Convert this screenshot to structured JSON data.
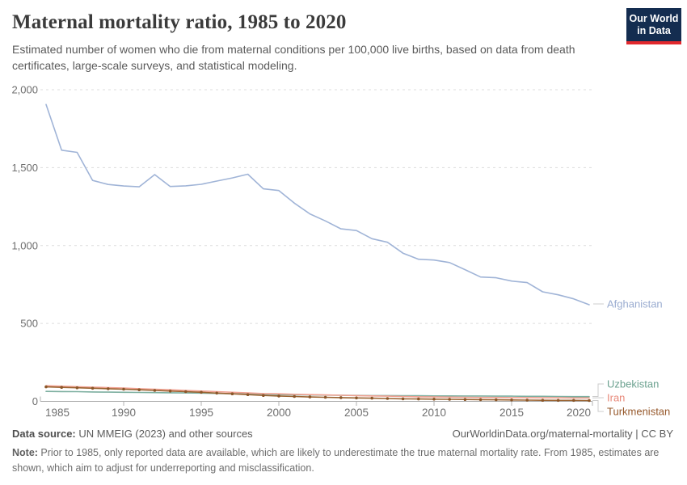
{
  "logo": {
    "line1": "Our World",
    "line2": "in Data",
    "bg_color": "#142d50",
    "bar_color": "#e1282d"
  },
  "header": {
    "title": "Maternal mortality ratio, 1985 to 2020",
    "subtitle": "Estimated number of women who die from maternal conditions per 100,000 live births, based on data from death certificates, large-scale surveys, and statistical modeling."
  },
  "chart_data": {
    "type": "line",
    "title": "Maternal mortality ratio, 1985 to 2020",
    "xlabel": "",
    "ylabel": "",
    "ylim": [
      0,
      2000
    ],
    "yticks": [
      0,
      500,
      1000,
      1500,
      2000
    ],
    "ytick_labels": [
      "0",
      "500",
      "1,000",
      "1,500",
      "2,000"
    ],
    "xticks": [
      1985,
      1990,
      1995,
      2000,
      2005,
      2010,
      2015,
      2020
    ],
    "grid": "horizontal-dashed",
    "legend": "end-of-line-labels",
    "years": [
      1985,
      1986,
      1987,
      1988,
      1989,
      1990,
      1991,
      1992,
      1993,
      1994,
      1995,
      1996,
      1997,
      1998,
      1999,
      2000,
      2001,
      2002,
      2003,
      2004,
      2005,
      2006,
      2007,
      2008,
      2009,
      2010,
      2011,
      2012,
      2013,
      2014,
      2015,
      2016,
      2017,
      2018,
      2019,
      2020
    ],
    "series": [
      {
        "name": "Afghanistan",
        "color": "#a0b4d7",
        "label_color": "#9aacd0",
        "markers": false,
        "values": [
          1905,
          1612,
          1598,
          1418,
          1392,
          1382,
          1377,
          1455,
          1379,
          1383,
          1393,
          1414,
          1434,
          1458,
          1364,
          1353,
          1272,
          1203,
          1158,
          1107,
          1096,
          1044,
          1021,
          951,
          912,
          907,
          891,
          845,
          798,
          793,
          772,
          762,
          703,
          684,
          658,
          620
        ]
      },
      {
        "name": "Uzbekistan",
        "color": "#7dafa0",
        "label_color": "#6ba18f",
        "markers": false,
        "values": [
          64,
          63,
          62,
          60,
          59,
          58,
          57,
          56,
          55,
          54,
          53,
          51,
          49,
          47,
          45,
          43,
          42,
          41,
          40,
          39,
          38,
          37,
          37,
          36,
          36,
          35,
          35,
          34,
          34,
          33,
          33,
          32,
          32,
          31,
          30,
          30
        ]
      },
      {
        "name": "Iran",
        "color": "#f0a091",
        "label_color": "#e8897a",
        "markers": false,
        "values": [
          100,
          97,
          94,
          91,
          88,
          85,
          81,
          78,
          74,
          70,
          66,
          62,
          58,
          54,
          50,
          48,
          45,
          43,
          41,
          39,
          37,
          35,
          33,
          31,
          29,
          28,
          27,
          26,
          25,
          25,
          24,
          24,
          23,
          23,
          22,
          22
        ]
      },
      {
        "name": "Turkmenistan",
        "color": "#9b6432",
        "label_color": "#96582b",
        "markers": true,
        "values": [
          93,
          90,
          87,
          84,
          81,
          78,
          74,
          70,
          66,
          62,
          58,
          53,
          48,
          43,
          38,
          34,
          31,
          28,
          26,
          24,
          22,
          20,
          18,
          16,
          15,
          14,
          13,
          12,
          11,
          10,
          9,
          8,
          7,
          6,
          6,
          5
        ]
      }
    ]
  },
  "footer": {
    "datasource_label": "Data source:",
    "datasource_text": " UN MMEIG (2023) and other sources",
    "url": "OurWorldinData.org/maternal-mortality",
    "license_suffix": " | CC BY",
    "note_label": "Note:",
    "note_text": " Prior to 1985, only reported data are available, which are likely to underestimate the true maternal mortality rate. From 1985, estimates are shown, which aim to adjust for underreporting and misclassification."
  }
}
